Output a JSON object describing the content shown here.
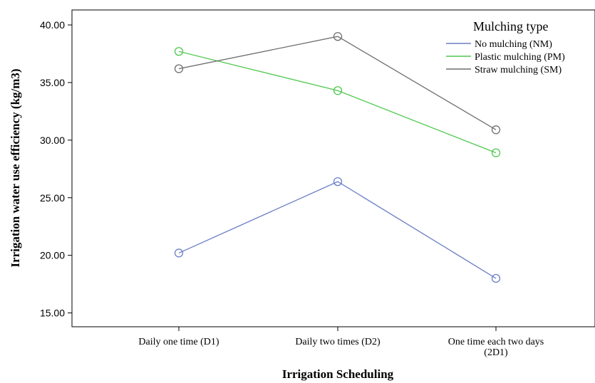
{
  "chart_data": {
    "type": "line",
    "xlabel": "Irrigation Scheduling",
    "ylabel": "Irrigation water use efficiency (kg/m3)",
    "categories": [
      [
        "Daily one time (D1)"
      ],
      [
        "Daily two times (D2)"
      ],
      [
        "One time each two days",
        "(2D1)"
      ]
    ],
    "ylim": [
      13.8,
      41.3
    ],
    "yticks": [
      15,
      20,
      25,
      30,
      35,
      40
    ],
    "ytick_labels": [
      "15.00",
      "20.00",
      "25.00",
      "30.00",
      "35.00",
      "40.00"
    ],
    "legend": {
      "title": "Mulching type",
      "position": "top-right"
    },
    "series": [
      {
        "name": "No mulching (NM)",
        "values": [
          20.2,
          26.4,
          18.0
        ],
        "color": "#6b7fc6"
      },
      {
        "name": "Plastic mulching (PM)",
        "values": [
          37.7,
          34.3,
          28.9
        ],
        "color": "#4ec84e"
      },
      {
        "name": "Straw mulching (SM)",
        "values": [
          36.2,
          39.0,
          30.9
        ],
        "color": "#6e6e6e"
      }
    ]
  }
}
